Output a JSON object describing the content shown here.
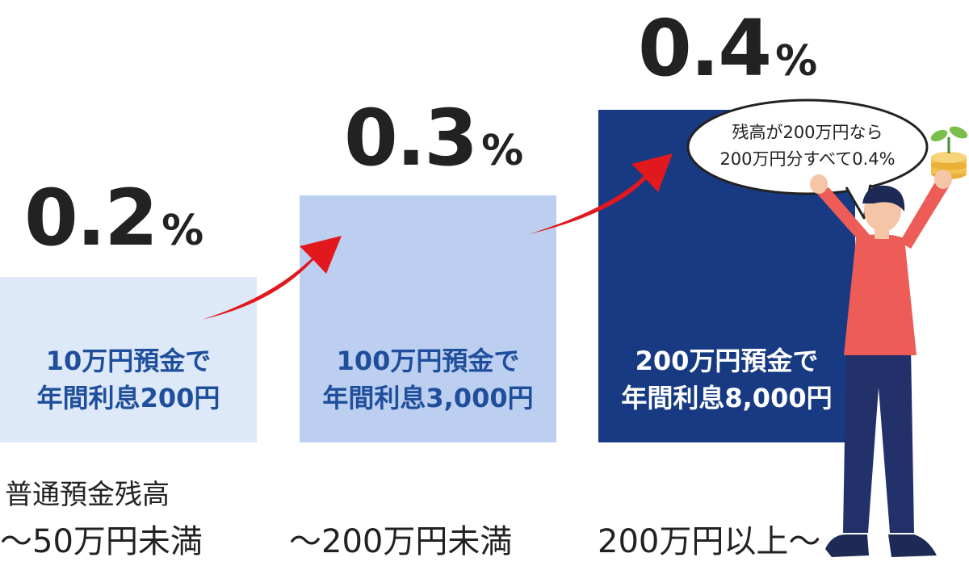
{
  "colors": {
    "tier1_fill": "#dde9f8",
    "tier2_fill": "#bccff0",
    "tier3_fill": "#173a83",
    "tier1_text": "#1f4f9c",
    "tier2_text": "#1f4f9c",
    "tier3_text": "#ffffff",
    "arrow": "#e2181f",
    "shirt": "#ee5c57",
    "pants": "#22316a"
  },
  "tiers": [
    {
      "rate": "0.2",
      "unit": "%",
      "desc_line1": "10万円預金で",
      "desc_line2": "年間利息200円",
      "range": "〜50万円未満"
    },
    {
      "rate": "0.3",
      "unit": "%",
      "desc_line1": "100万円預金で",
      "desc_line2": "年間利息3,000円",
      "range": "〜200万円未満"
    },
    {
      "rate": "0.4",
      "unit": "%",
      "desc_line1": "200万円預金で",
      "desc_line2": "年間利息8,000円",
      "range": "200万円以上〜"
    }
  ],
  "range_heading": "普通預金残高",
  "speech_bubble": {
    "line1": "残高が200万円なら",
    "line2": "200万円分すべて0.4%"
  },
  "icons": [
    "arrow-up-right-icon",
    "person-cheering-icon",
    "coin-stack-icon",
    "sprout-icon"
  ]
}
